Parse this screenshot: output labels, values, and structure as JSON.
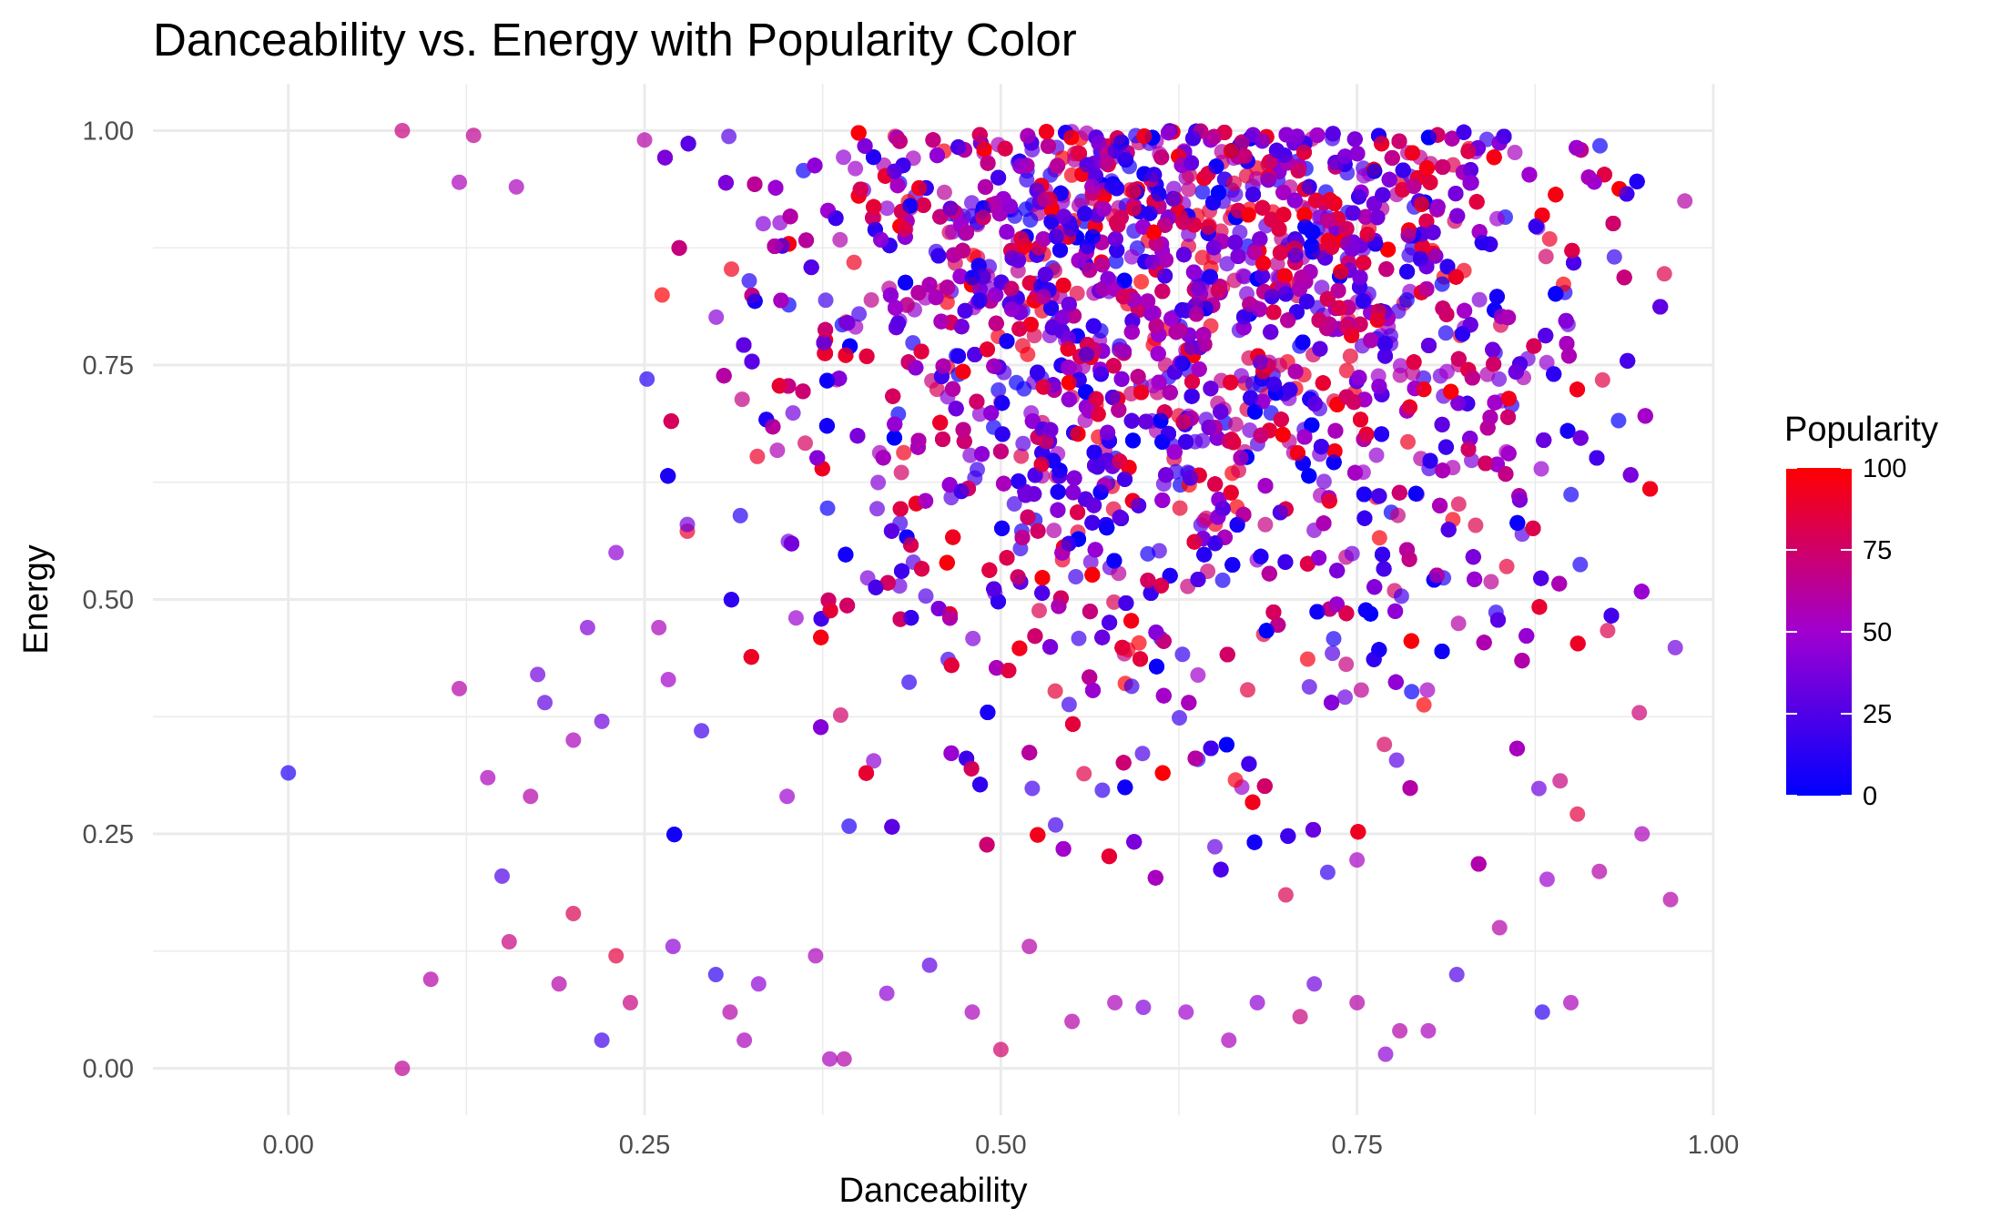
{
  "chart_data": {
    "type": "scatter",
    "title": "Danceability vs. Energy with Popularity Color",
    "xlabel": "Danceability",
    "ylabel": "Energy",
    "xlim": [
      -0.095,
      1.0
    ],
    "ylim": [
      -0.05,
      1.05
    ],
    "x_ticks": [
      0.0,
      0.25,
      0.5,
      0.75,
      1.0
    ],
    "x_tick_labels": [
      "0.00",
      "0.25",
      "0.50",
      "0.75",
      "1.00"
    ],
    "y_ticks": [
      0.0,
      0.25,
      0.5,
      0.75,
      1.0
    ],
    "y_tick_labels": [
      "0.00",
      "0.25",
      "0.50",
      "0.75",
      "1.00"
    ],
    "grid": true,
    "legend": {
      "title": "Popularity",
      "placement": "right",
      "ticks": [
        0,
        25,
        50,
        75,
        100
      ],
      "tick_labels": [
        "0",
        "25",
        "50",
        "75",
        "100"
      ],
      "low_color": "#0000ff",
      "high_color": "#ff0000",
      "range": [
        0,
        100
      ]
    },
    "point_alpha": 0.7,
    "background_color": "#ffffff",
    "grid_color": "#ebebeb",
    "series": [
      {
        "x": [
          0.0,
          0.08,
          0.08,
          0.1,
          0.12,
          0.12,
          0.13,
          0.14,
          0.15,
          0.155,
          0.16,
          0.17,
          0.175,
          0.18,
          0.19,
          0.2,
          0.2,
          0.21,
          0.22,
          0.22,
          0.23,
          0.23,
          0.24,
          0.25,
          0.26,
          0.27,
          0.28,
          0.29,
          0.3,
          0.31,
          0.32,
          0.33,
          0.35,
          0.37,
          0.38,
          0.39,
          0.42,
          0.45,
          0.48,
          0.5,
          0.52,
          0.55,
          0.58,
          0.6,
          0.63,
          0.66,
          0.68,
          0.7,
          0.71,
          0.72,
          0.75,
          0.77,
          0.78,
          0.8,
          0.82,
          0.85,
          0.88,
          0.9,
          0.92,
          0.95,
          0.97,
          0.98
        ],
        "y": [
          0.315,
          1.0,
          0.0,
          0.095,
          0.945,
          0.405,
          0.995,
          0.31,
          0.205,
          0.135,
          0.94,
          0.29,
          0.42,
          0.39,
          0.09,
          0.165,
          0.35,
          0.47,
          0.03,
          0.37,
          0.12,
          0.55,
          0.07,
          0.99,
          0.47,
          0.13,
          0.58,
          0.36,
          0.1,
          0.06,
          0.03,
          0.09,
          0.29,
          0.12,
          0.01,
          0.01,
          0.08,
          0.11,
          0.06,
          0.02,
          0.13,
          0.05,
          0.07,
          0.065,
          0.06,
          0.03,
          0.07,
          0.185,
          0.055,
          0.09,
          0.07,
          0.015,
          0.04,
          0.04,
          0.1,
          0.15,
          0.06,
          0.07,
          0.21,
          0.25,
          0.18,
          0.925
        ],
        "popularity": [
          10,
          70,
          65,
          60,
          55,
          60,
          65,
          55,
          25,
          70,
          55,
          60,
          35,
          30,
          60,
          80,
          55,
          40,
          20,
          35,
          85,
          45,
          70,
          60,
          55,
          45,
          35,
          20,
          15,
          60,
          55,
          45,
          50,
          55,
          55,
          60,
          45,
          30,
          55,
          75,
          60,
          60,
          55,
          40,
          50,
          55,
          45,
          80,
          70,
          35,
          60,
          45,
          60,
          55,
          25,
          60,
          15,
          55,
          60,
          55,
          60,
          60
        ]
      }
    ],
    "density_note": "thousands of overlapping points; densest region roughly danceability 0.45-0.92, energy 0.35-1.00"
  }
}
